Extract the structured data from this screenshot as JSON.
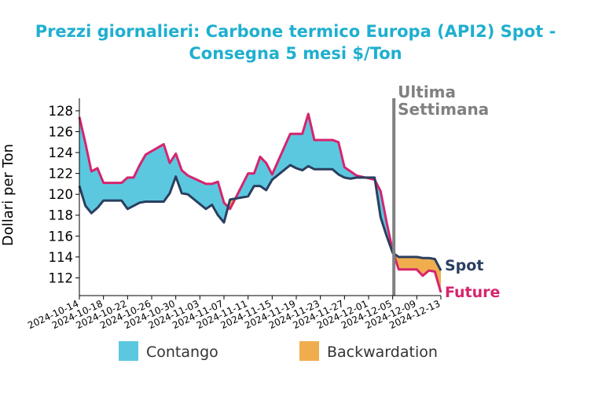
{
  "chart_data": {
    "type": "area",
    "title_lines": [
      "Prezzi giornalieri: Carbone termico Europa (API2) Spot -",
      "Consegna 5 mesi $/Ton"
    ],
    "ylabel": "Dollari per Ton",
    "xlabel": "",
    "ylim": [
      110.3,
      129.2
    ],
    "yticks": [
      112,
      114,
      116,
      118,
      120,
      122,
      124,
      126,
      128
    ],
    "xlim": [
      "2024-10-14",
      "2024-12-13"
    ],
    "xticks": [
      "2024-10-14",
      "2024-10-18",
      "2024-10-22",
      "2024-10-26",
      "2024-10-30",
      "2024-11-03",
      "2024-11-07",
      "2024-11-11",
      "2024-11-15",
      "2024-11-19",
      "2024-11-23",
      "2024-11-27",
      "2024-12-01",
      "2024-12-05",
      "2024-12-09",
      "2024-12-13"
    ],
    "marker": {
      "date": "2024-12-05",
      "label_lines": [
        "Ultima",
        "Settimana"
      ],
      "color": "#808080"
    },
    "series": [
      {
        "name": "Spot",
        "color": "#2a3f5f",
        "x": [
          "2024-10-14",
          "2024-10-15",
          "2024-10-16",
          "2024-10-17",
          "2024-10-18",
          "2024-10-21",
          "2024-10-22",
          "2024-10-23",
          "2024-10-24",
          "2024-10-25",
          "2024-10-28",
          "2024-10-29",
          "2024-10-30",
          "2024-10-31",
          "2024-11-01",
          "2024-11-04",
          "2024-11-05",
          "2024-11-06",
          "2024-11-07",
          "2024-11-08",
          "2024-11-11",
          "2024-11-12",
          "2024-11-13",
          "2024-11-14",
          "2024-11-15",
          "2024-11-18",
          "2024-11-19",
          "2024-11-20",
          "2024-11-21",
          "2024-11-22",
          "2024-11-25",
          "2024-11-26",
          "2024-11-27",
          "2024-11-28",
          "2024-11-29",
          "2024-12-02",
          "2024-12-03",
          "2024-12-04",
          "2024-12-05",
          "2024-12-06",
          "2024-12-09",
          "2024-12-10",
          "2024-12-11",
          "2024-12-12",
          "2024-12-13"
        ],
        "values": [
          120.8,
          118.9,
          118.2,
          118.7,
          119.4,
          119.4,
          118.6,
          118.9,
          119.2,
          119.3,
          119.3,
          120.1,
          121.7,
          120.1,
          120.0,
          118.6,
          119.0,
          118.0,
          117.3,
          119.5,
          119.8,
          120.8,
          120.8,
          120.4,
          121.4,
          122.8,
          122.5,
          122.3,
          122.7,
          122.4,
          122.4,
          121.9,
          121.6,
          121.5,
          121.6,
          121.6,
          117.8,
          116.0,
          114.4,
          114.0,
          114.0,
          113.9,
          113.9,
          113.8,
          112.7
        ]
      },
      {
        "name": "Future",
        "color": "#d6246e",
        "x": [
          "2024-10-14",
          "2024-10-15",
          "2024-10-16",
          "2024-10-17",
          "2024-10-18",
          "2024-10-21",
          "2024-10-22",
          "2024-10-23",
          "2024-10-24",
          "2024-10-25",
          "2024-10-28",
          "2024-10-29",
          "2024-10-30",
          "2024-10-31",
          "2024-11-01",
          "2024-11-04",
          "2024-11-05",
          "2024-11-06",
          "2024-11-07",
          "2024-11-08",
          "2024-11-11",
          "2024-11-12",
          "2024-11-13",
          "2024-11-14",
          "2024-11-15",
          "2024-11-18",
          "2024-11-19",
          "2024-11-20",
          "2024-11-21",
          "2024-11-22",
          "2024-11-25",
          "2024-11-26",
          "2024-11-27",
          "2024-11-28",
          "2024-11-29",
          "2024-12-02",
          "2024-12-03",
          "2024-12-04",
          "2024-12-05",
          "2024-12-06",
          "2024-12-09",
          "2024-12-10",
          "2024-12-11",
          "2024-12-12",
          "2024-12-13"
        ],
        "values": [
          127.4,
          124.9,
          122.2,
          122.5,
          121.1,
          121.1,
          121.6,
          121.6,
          122.8,
          123.8,
          124.8,
          123.0,
          123.9,
          122.3,
          121.8,
          121.0,
          121.0,
          121.2,
          119.2,
          118.6,
          122.0,
          122.0,
          123.6,
          123.0,
          121.9,
          125.8,
          125.8,
          125.8,
          127.7,
          125.2,
          125.2,
          125.0,
          122.6,
          122.2,
          121.8,
          121.4,
          120.3,
          117.3,
          114.6,
          112.8,
          112.8,
          112.2,
          112.7,
          112.6,
          110.6
        ]
      }
    ],
    "fills": [
      {
        "name": "Contango",
        "color": "#5bc8e0"
      },
      {
        "name": "Backwardation",
        "color": "#f0ad4e"
      }
    ],
    "legend_position": "bottom",
    "grid": false
  }
}
